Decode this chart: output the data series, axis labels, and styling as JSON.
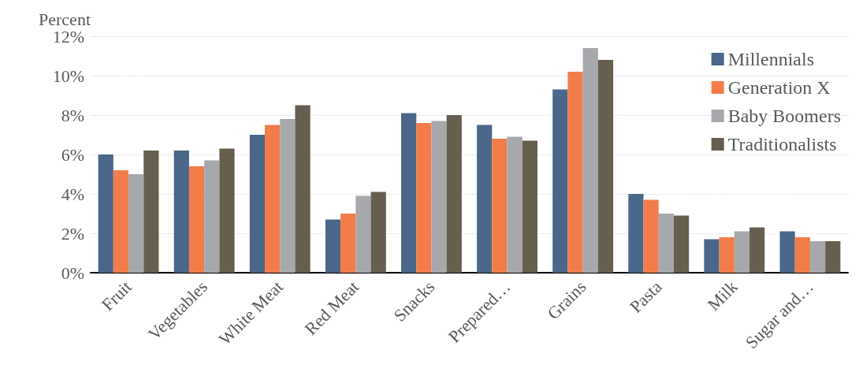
{
  "chart_data": {
    "type": "bar",
    "ylabel": "Percent",
    "categories": [
      "Fruit",
      "Vegetables",
      "White Meat",
      "Red Meat",
      "Snacks",
      "Prepared…",
      "Grains",
      "Pasta",
      "Milk",
      "Sugar and…"
    ],
    "series": [
      {
        "name": "Millennials",
        "color": "#4a6789",
        "values": [
          6.0,
          6.2,
          7.0,
          2.7,
          8.1,
          7.5,
          9.3,
          4.0,
          1.7,
          2.1
        ]
      },
      {
        "name": "Generation X",
        "color": "#f27c4a",
        "values": [
          5.2,
          5.4,
          7.5,
          3.0,
          7.6,
          6.8,
          10.2,
          3.7,
          1.8,
          1.8
        ]
      },
      {
        "name": "Baby Boomers",
        "color": "#a7a8ab",
        "values": [
          5.0,
          5.7,
          7.8,
          3.9,
          7.7,
          6.9,
          11.4,
          3.0,
          2.1,
          1.6
        ]
      },
      {
        "name": "Traditionalists",
        "color": "#665f50",
        "values": [
          6.2,
          6.3,
          8.5,
          4.1,
          8.0,
          6.7,
          10.8,
          2.9,
          2.3,
          1.6
        ]
      }
    ],
    "ylim": [
      0,
      12
    ],
    "yticks": [
      {
        "value": 0,
        "label": "0%"
      },
      {
        "value": 2,
        "label": "2%"
      },
      {
        "value": 4,
        "label": "4%"
      },
      {
        "value": 6,
        "label": "6%"
      },
      {
        "value": 8,
        "label": "8%"
      },
      {
        "value": 10,
        "label": "10%"
      },
      {
        "value": 12,
        "label": "12%"
      }
    ],
    "grid": "y",
    "legend": "top right"
  }
}
